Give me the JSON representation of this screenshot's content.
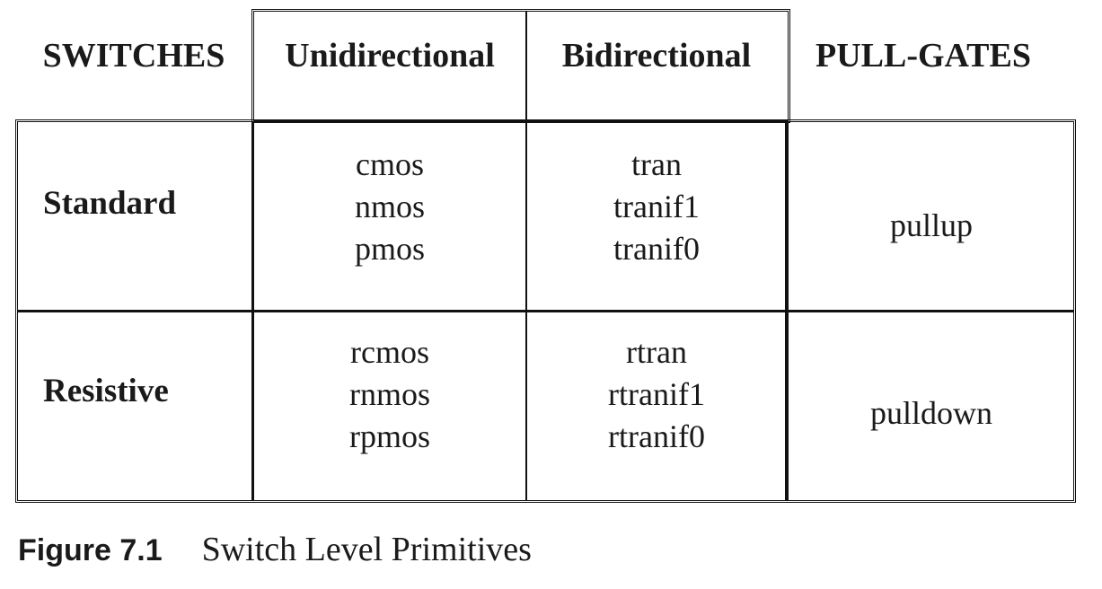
{
  "table": {
    "corner_label": "SWITCHES",
    "columns": [
      "Unidirectional",
      "Bidirectional",
      "PULL-GATES"
    ],
    "rows": [
      {
        "label": "Standard",
        "unidirectional": [
          "cmos",
          "nmos",
          "pmos"
        ],
        "bidirectional": [
          "tran",
          "tranif1",
          "tranif0"
        ],
        "pull_gate": "pullup"
      },
      {
        "label": "Resistive",
        "unidirectional": [
          "rcmos",
          "rnmos",
          "rpmos"
        ],
        "bidirectional": [
          "rtran",
          "rtranif1",
          "rtranif0"
        ],
        "pull_gate": "pulldown"
      }
    ]
  },
  "caption": {
    "label": "Figure 7.1",
    "text": "Switch Level Primitives"
  }
}
